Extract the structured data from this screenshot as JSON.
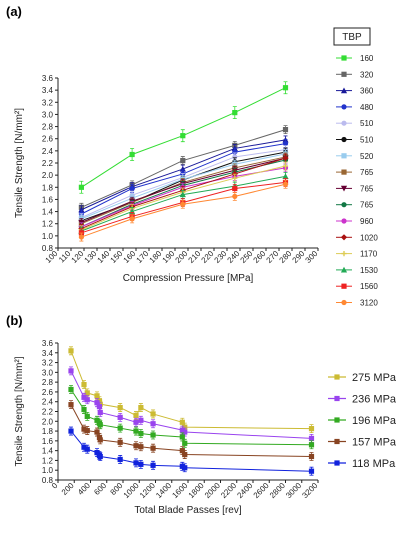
{
  "chart_data": [
    {
      "panel_label": "(a)",
      "type": "line",
      "xlabel": "Compression Pressure [MPa]",
      "ylabel": "Tensile Strength [N/mm²]",
      "xlim": [
        100,
        300
      ],
      "ylim": [
        0.8,
        3.6
      ],
      "xticks": [
        100,
        110,
        120,
        130,
        140,
        150,
        160,
        170,
        180,
        190,
        200,
        210,
        220,
        230,
        240,
        250,
        260,
        270,
        280,
        290,
        300
      ],
      "yticks": [
        0.8,
        1.0,
        1.2,
        1.4,
        1.6,
        1.8,
        2.0,
        2.2,
        2.4,
        2.6,
        2.8,
        3.0,
        3.2,
        3.4,
        3.6
      ],
      "legend_title": "TBP",
      "x": [
        118,
        157,
        196,
        236,
        275
      ],
      "series": [
        {
          "name": "160",
          "color": "#33dd33",
          "marker": "square",
          "values": [
            1.8,
            2.34,
            2.65,
            3.03,
            3.44
          ]
        },
        {
          "name": "320",
          "color": "#666666",
          "marker": "square",
          "values": [
            1.47,
            1.84,
            2.24,
            2.49,
            2.75
          ]
        },
        {
          "name": "360",
          "color": "#1a1a99",
          "marker": "triangle",
          "values": [
            1.43,
            1.81,
            2.1,
            2.44,
            2.58
          ]
        },
        {
          "name": "480",
          "color": "#2233cc",
          "marker": "circle",
          "values": [
            1.36,
            1.78,
            2.02,
            2.38,
            2.52
          ]
        },
        {
          "name": "510",
          "color": "#bbbbee",
          "marker": "circle",
          "values": [
            1.3,
            1.67,
            1.96,
            2.3,
            2.42
          ]
        },
        {
          "name": "510",
          "color": "#111111",
          "marker": "circle",
          "values": [
            1.25,
            1.55,
            1.92,
            2.22,
            2.38
          ]
        },
        {
          "name": "520",
          "color": "#99ccee",
          "marker": "square",
          "values": [
            1.28,
            1.62,
            1.93,
            2.18,
            2.35
          ]
        },
        {
          "name": "765",
          "color": "#996633",
          "marker": "square",
          "values": [
            1.2,
            1.55,
            1.88,
            2.12,
            2.3
          ]
        },
        {
          "name": "765",
          "color": "#660033",
          "marker": "tri-down",
          "values": [
            1.22,
            1.57,
            1.86,
            2.08,
            2.28
          ]
        },
        {
          "name": "765",
          "color": "#117744",
          "marker": "circle",
          "values": [
            1.15,
            1.52,
            1.83,
            2.05,
            2.25
          ]
        },
        {
          "name": "960",
          "color": "#cc33cc",
          "marker": "circle",
          "values": [
            1.15,
            1.5,
            1.8,
            1.98,
            2.12
          ]
        },
        {
          "name": "1020",
          "color": "#aa1111",
          "marker": "diamond",
          "values": [
            1.12,
            1.48,
            1.75,
            2.02,
            2.28
          ]
        },
        {
          "name": "1170",
          "color": "#ddcc55",
          "marker": "plus",
          "values": [
            1.1,
            1.45,
            1.72,
            1.95,
            2.15
          ]
        },
        {
          "name": "1530",
          "color": "#22aa55",
          "marker": "triangle",
          "values": [
            1.08,
            1.4,
            1.68,
            1.82,
            1.98
          ]
        },
        {
          "name": "1560",
          "color": "#ee2222",
          "marker": "square",
          "values": [
            1.05,
            1.32,
            1.55,
            1.78,
            1.88
          ]
        },
        {
          "name": "3120",
          "color": "#ff8833",
          "marker": "circle",
          "values": [
            0.98,
            1.28,
            1.52,
            1.65,
            1.85
          ]
        }
      ]
    },
    {
      "panel_label": "(b)",
      "type": "line",
      "xlabel": "Total Blade Passes [rev]",
      "ylabel": "Tensile Strength [N/mm²]",
      "xlim": [
        0,
        3200
      ],
      "ylim": [
        0.8,
        3.6
      ],
      "xticks": [
        0,
        200,
        400,
        600,
        800,
        1000,
        1200,
        1400,
        1600,
        1800,
        2000,
        2200,
        2400,
        2600,
        2800,
        3000,
        3200
      ],
      "yticks": [
        0.8,
        1.0,
        1.2,
        1.4,
        1.6,
        1.8,
        2.0,
        2.2,
        2.4,
        2.6,
        2.8,
        3.0,
        3.2,
        3.4,
        3.6
      ],
      "x": [
        160,
        320,
        360,
        480,
        510,
        520,
        765,
        960,
        1020,
        1170,
        1530,
        1560,
        3120
      ],
      "series": [
        {
          "name": "275 MPa",
          "color": "#ccbb33",
          "values": [
            3.44,
            2.75,
            2.58,
            2.52,
            2.42,
            2.35,
            2.28,
            2.12,
            2.28,
            2.15,
            1.98,
            1.88,
            1.85
          ]
        },
        {
          "name": "236 MPa",
          "color": "#9944ee",
          "values": [
            3.03,
            2.49,
            2.44,
            2.38,
            2.3,
            2.18,
            2.08,
            1.98,
            2.02,
            1.95,
            1.82,
            1.78,
            1.65
          ]
        },
        {
          "name": "196 MPa",
          "color": "#33aa22",
          "values": [
            2.65,
            2.24,
            2.1,
            2.02,
            1.96,
            1.93,
            1.86,
            1.8,
            1.75,
            1.72,
            1.68,
            1.55,
            1.52
          ]
        },
        {
          "name": "157 MPa",
          "color": "#884422",
          "values": [
            2.34,
            1.84,
            1.81,
            1.78,
            1.67,
            1.62,
            1.57,
            1.5,
            1.48,
            1.45,
            1.4,
            1.32,
            1.28
          ]
        },
        {
          "name": "118 MPa",
          "color": "#1122dd",
          "values": [
            1.8,
            1.47,
            1.43,
            1.36,
            1.3,
            1.28,
            1.22,
            1.15,
            1.12,
            1.1,
            1.08,
            1.05,
            0.98
          ]
        }
      ]
    }
  ]
}
